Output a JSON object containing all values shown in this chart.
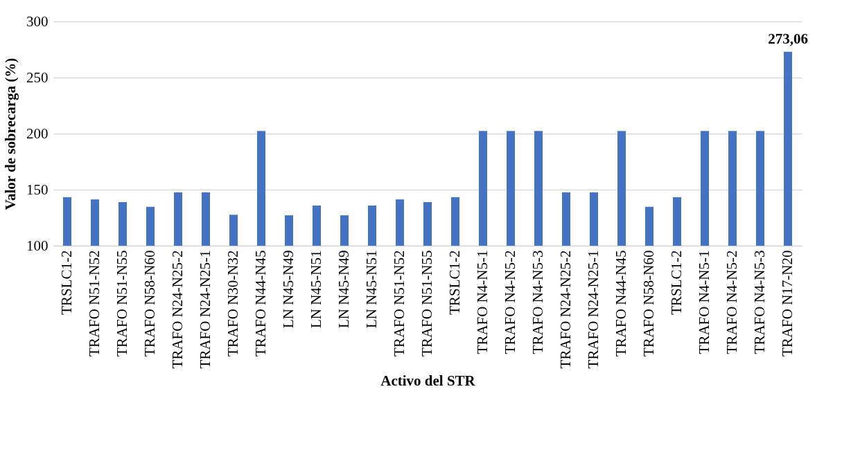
{
  "chart_data": {
    "type": "bar",
    "xlabel": "Activo del STR",
    "ylabel": "Valor de sobrecarga (%)",
    "categories": [
      "TRSLC1-2",
      "TRAFO N51-N52",
      "TRAFO N51-N55",
      "TRAFO N58-N60",
      "TRAFO N24-N25-2",
      "TRAFO N24-N25-1",
      "TRAFO N30-N32",
      "TRAFO N44-N45",
      "LN N45-N49",
      "LN N45-N51",
      "LN N45-N49",
      "LN N45-N51",
      "TRAFO N51-N52",
      "TRAFO N51-N55",
      "TRSLC1-2",
      "TRAFO N4-N5-1",
      "TRAFO N4-N5-2",
      "TRAFO N4-N5-3",
      "TRAFO N24-N25-2",
      "TRAFO N24-N25-1",
      "TRAFO N44-N45",
      "TRAFO N58-N60",
      "TRSLC1-2",
      "TRAFO N4-N5-1",
      "TRAFO N4-N5-2",
      "TRAFO N4-N5-3",
      "TRAFO N17-N20"
    ],
    "values": [
      143.3,
      141.3,
      138.9,
      134.7,
      147.6,
      147.6,
      127.6,
      202.3,
      127.1,
      135.8,
      127.1,
      135.8,
      141.3,
      138.9,
      143.3,
      202.3,
      202.3,
      202.3,
      147.6,
      147.6,
      202.3,
      134.7,
      143.3,
      202.3,
      202.3,
      202.3,
      273.06
    ],
    "value_labels": [
      null,
      null,
      null,
      null,
      null,
      null,
      null,
      null,
      null,
      null,
      null,
      null,
      null,
      null,
      null,
      null,
      null,
      null,
      null,
      null,
      null,
      null,
      null,
      null,
      null,
      null,
      "273,06"
    ],
    "color": "#4472c4",
    "ylim": [
      100,
      300
    ],
    "yticks": [
      100,
      150,
      200,
      250,
      300
    ],
    "grid": "y",
    "legend": false
  }
}
